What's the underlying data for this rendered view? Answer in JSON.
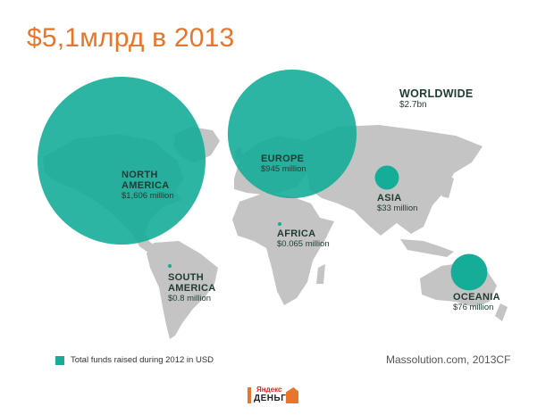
{
  "title": "$5,1млрд в 2013",
  "colors": {
    "accent": "#e8752a",
    "bubble": "#15ad98",
    "land": "#c4c4c4",
    "text": "#1f3b33"
  },
  "regions": [
    {
      "id": "north-america",
      "name_line1": "NORTH",
      "name_line2": "AMERICA",
      "value": "$1,606 million",
      "amount_musd": 1606
    },
    {
      "id": "europe",
      "name_line1": "EUROPE",
      "name_line2": "",
      "value": "$945 million",
      "amount_musd": 945
    },
    {
      "id": "asia",
      "name_line1": "ASIA",
      "name_line2": "",
      "value": "$33 million",
      "amount_musd": 33
    },
    {
      "id": "africa",
      "name_line1": "AFRICA",
      "name_line2": "",
      "value": "$0.065 million",
      "amount_musd": 0.065
    },
    {
      "id": "south-america",
      "name_line1": "SOUTH",
      "name_line2": "AMERICA",
      "value": "$0.8 million",
      "amount_musd": 0.8
    },
    {
      "id": "oceania",
      "name_line1": "OCEANIA",
      "name_line2": "",
      "value": "$76 million",
      "amount_musd": 76
    }
  ],
  "worldwide": {
    "name": "WORLDWIDE",
    "value": "$2.7bn"
  },
  "legend": {
    "label": "Total funds raised during 2012 in USD"
  },
  "source": "Massolution.com, 2013CF",
  "logo": {
    "line1": "Яндекс",
    "line2": "ДЕНЬГИ"
  }
}
